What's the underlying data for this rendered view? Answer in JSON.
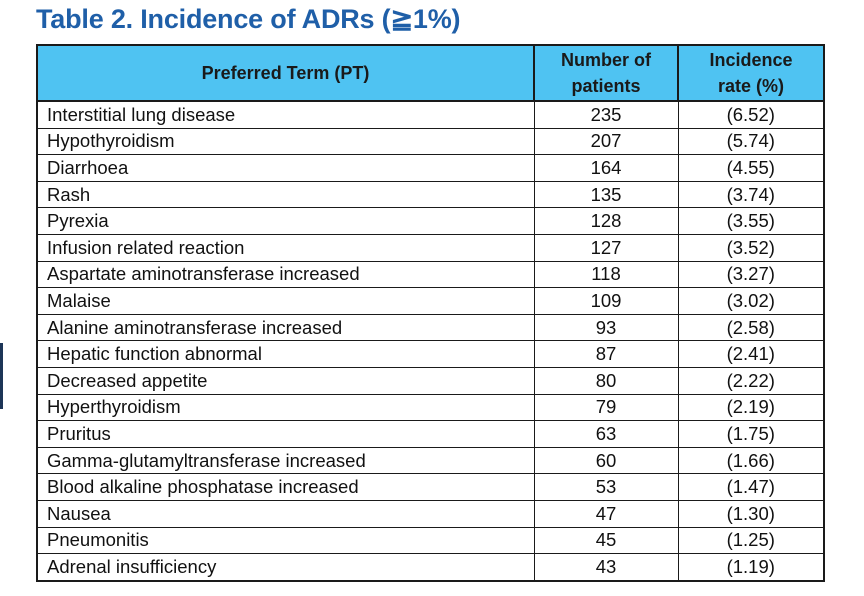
{
  "title": "Table 2. Incidence of ADRs (≧1%)",
  "headers": {
    "pt": "Preferred Term (PT)",
    "num_line1": "Number of",
    "num_line2": "patients",
    "rate_line1": "Incidence",
    "rate_line2": "rate (%)"
  },
  "rows": [
    {
      "pt": "Interstitial lung disease",
      "n": "235",
      "rate": "(6.52)"
    },
    {
      "pt": "Hypothyroidism",
      "n": "207",
      "rate": "(5.74)"
    },
    {
      "pt": "Diarrhoea",
      "n": "164",
      "rate": "(4.55)"
    },
    {
      "pt": "Rash",
      "n": "135",
      "rate": "(3.74)"
    },
    {
      "pt": "Pyrexia",
      "n": "128",
      "rate": "(3.55)"
    },
    {
      "pt": "Infusion related reaction",
      "n": "127",
      "rate": "(3.52)"
    },
    {
      "pt": "Aspartate aminotransferase increased",
      "n": "118",
      "rate": "(3.27)"
    },
    {
      "pt": "Malaise",
      "n": "109",
      "rate": "(3.02)"
    },
    {
      "pt": "Alanine aminotransferase increased",
      "n": "93",
      "rate": "(2.58)"
    },
    {
      "pt": "Hepatic function abnormal",
      "n": "87",
      "rate": "(2.41)"
    },
    {
      "pt": "Decreased appetite",
      "n": "80",
      "rate": "(2.22)"
    },
    {
      "pt": "Hyperthyroidism",
      "n": "79",
      "rate": "(2.19)"
    },
    {
      "pt": "Pruritus",
      "n": "63",
      "rate": "(1.75)"
    },
    {
      "pt": "Gamma-glutamyltransferase increased",
      "n": "60",
      "rate": "(1.66)"
    },
    {
      "pt": "Blood alkaline phosphatase increased",
      "n": "53",
      "rate": "(1.47)"
    },
    {
      "pt": "Nausea",
      "n": "47",
      "rate": "(1.30)"
    },
    {
      "pt": "Pneumonitis",
      "n": "45",
      "rate": "(1.25)"
    },
    {
      "pt": "Adrenal insufficiency",
      "n": "43",
      "rate": "(1.19)"
    }
  ]
}
